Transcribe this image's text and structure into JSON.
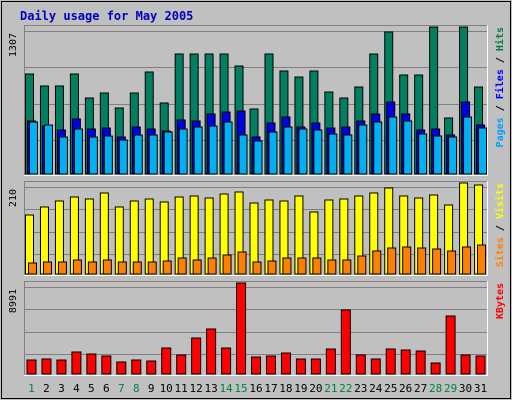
{
  "chart_data": [
    {
      "type": "bar",
      "title": "Daily usage for May 2005",
      "ymax_label": "1307",
      "ylim": [
        0,
        1307
      ],
      "grid": true,
      "categories": [
        "1",
        "2",
        "3",
        "4",
        "5",
        "6",
        "7",
        "8",
        "9",
        "10",
        "11",
        "12",
        "13",
        "14",
        "15",
        "16",
        "17",
        "18",
        "19",
        "20",
        "21",
        "22",
        "23",
        "24",
        "25",
        "26",
        "27",
        "28",
        "29",
        "30",
        "31"
      ],
      "weekend_days": [
        "1",
        "7",
        "8",
        "14",
        "15",
        "21",
        "22",
        "28",
        "29"
      ],
      "legend": [
        {
          "label": "Pages",
          "color": "#00a0ff"
        },
        {
          "sep": " / "
        },
        {
          "label": "Files",
          "color": "#0000ff"
        },
        {
          "sep": " / "
        },
        {
          "label": "Hits",
          "color": "#008040"
        }
      ],
      "series": [
        {
          "name": "Hits",
          "color": "#008060",
          "values": [
            893,
            780,
            780,
            893,
            680,
            716,
            590,
            716,
            906,
            630,
            1070,
            1070,
            1070,
            1070,
            960,
            575,
            1070,
            920,
            860,
            920,
            730,
            680,
            775,
            1070,
            1260,
            880,
            880,
            1307,
            500,
            1307,
            770
          ]
        },
        {
          "name": "Files",
          "color": "#0000e0",
          "values": [
            470,
            430,
            390,
            490,
            400,
            405,
            330,
            420,
            400,
            380,
            480,
            470,
            530,
            550,
            560,
            330,
            450,
            510,
            420,
            450,
            410,
            420,
            470,
            530,
            640,
            530,
            390,
            400,
            345,
            640,
            440
          ]
        },
        {
          "name": "Pages",
          "color": "#00b0f0",
          "values": [
            460,
            440,
            330,
            400,
            330,
            340,
            300,
            350,
            350,
            370,
            400,
            420,
            425,
            460,
            350,
            290,
            370,
            420,
            400,
            395,
            360,
            350,
            440,
            460,
            510,
            470,
            360,
            340,
            330,
            505,
            410
          ]
        }
      ]
    },
    {
      "type": "bar",
      "ymax_label": "210",
      "ylim": [
        0,
        210
      ],
      "grid": true,
      "legend": [
        {
          "label": "Sites",
          "color": "#ff8000"
        },
        {
          "sep": " / "
        },
        {
          "label": "Visits",
          "color": "#ffff00"
        }
      ],
      "series": [
        {
          "name": "Visits",
          "color": "#ffff00",
          "values": [
            135,
            155,
            168,
            177,
            172,
            187,
            155,
            168,
            173,
            167,
            178,
            181,
            176,
            184,
            190,
            164,
            171,
            168,
            180,
            142,
            171,
            173,
            181,
            188,
            199,
            181,
            175,
            182,
            159,
            210,
            206
          ]
        },
        {
          "name": "Sites",
          "color": "#ff8000",
          "values": [
            25,
            27,
            28,
            33,
            27,
            33,
            27,
            28,
            28,
            30,
            36,
            33,
            37,
            44,
            51,
            28,
            29,
            36,
            38,
            36,
            33,
            33,
            41,
            54,
            59,
            62,
            61,
            58,
            52,
            63,
            68
          ]
        }
      ]
    },
    {
      "type": "bar",
      "ymax_label": "8991",
      "ylim": [
        0,
        8991
      ],
      "grid": true,
      "legend": [
        {
          "label": "KBytes",
          "color": "#ff0000"
        }
      ],
      "series": [
        {
          "name": "KBytes",
          "color": "#ff0000",
          "values": [
            1400,
            1450,
            1400,
            2200,
            1950,
            1800,
            1200,
            1400,
            1300,
            2600,
            1850,
            3550,
            4450,
            2600,
            8991,
            1650,
            1800,
            2100,
            1500,
            1500,
            2500,
            6300,
            1850,
            1500,
            2500,
            2350,
            2300,
            1050,
            5700,
            1900,
            1800
          ]
        }
      ]
    }
  ]
}
